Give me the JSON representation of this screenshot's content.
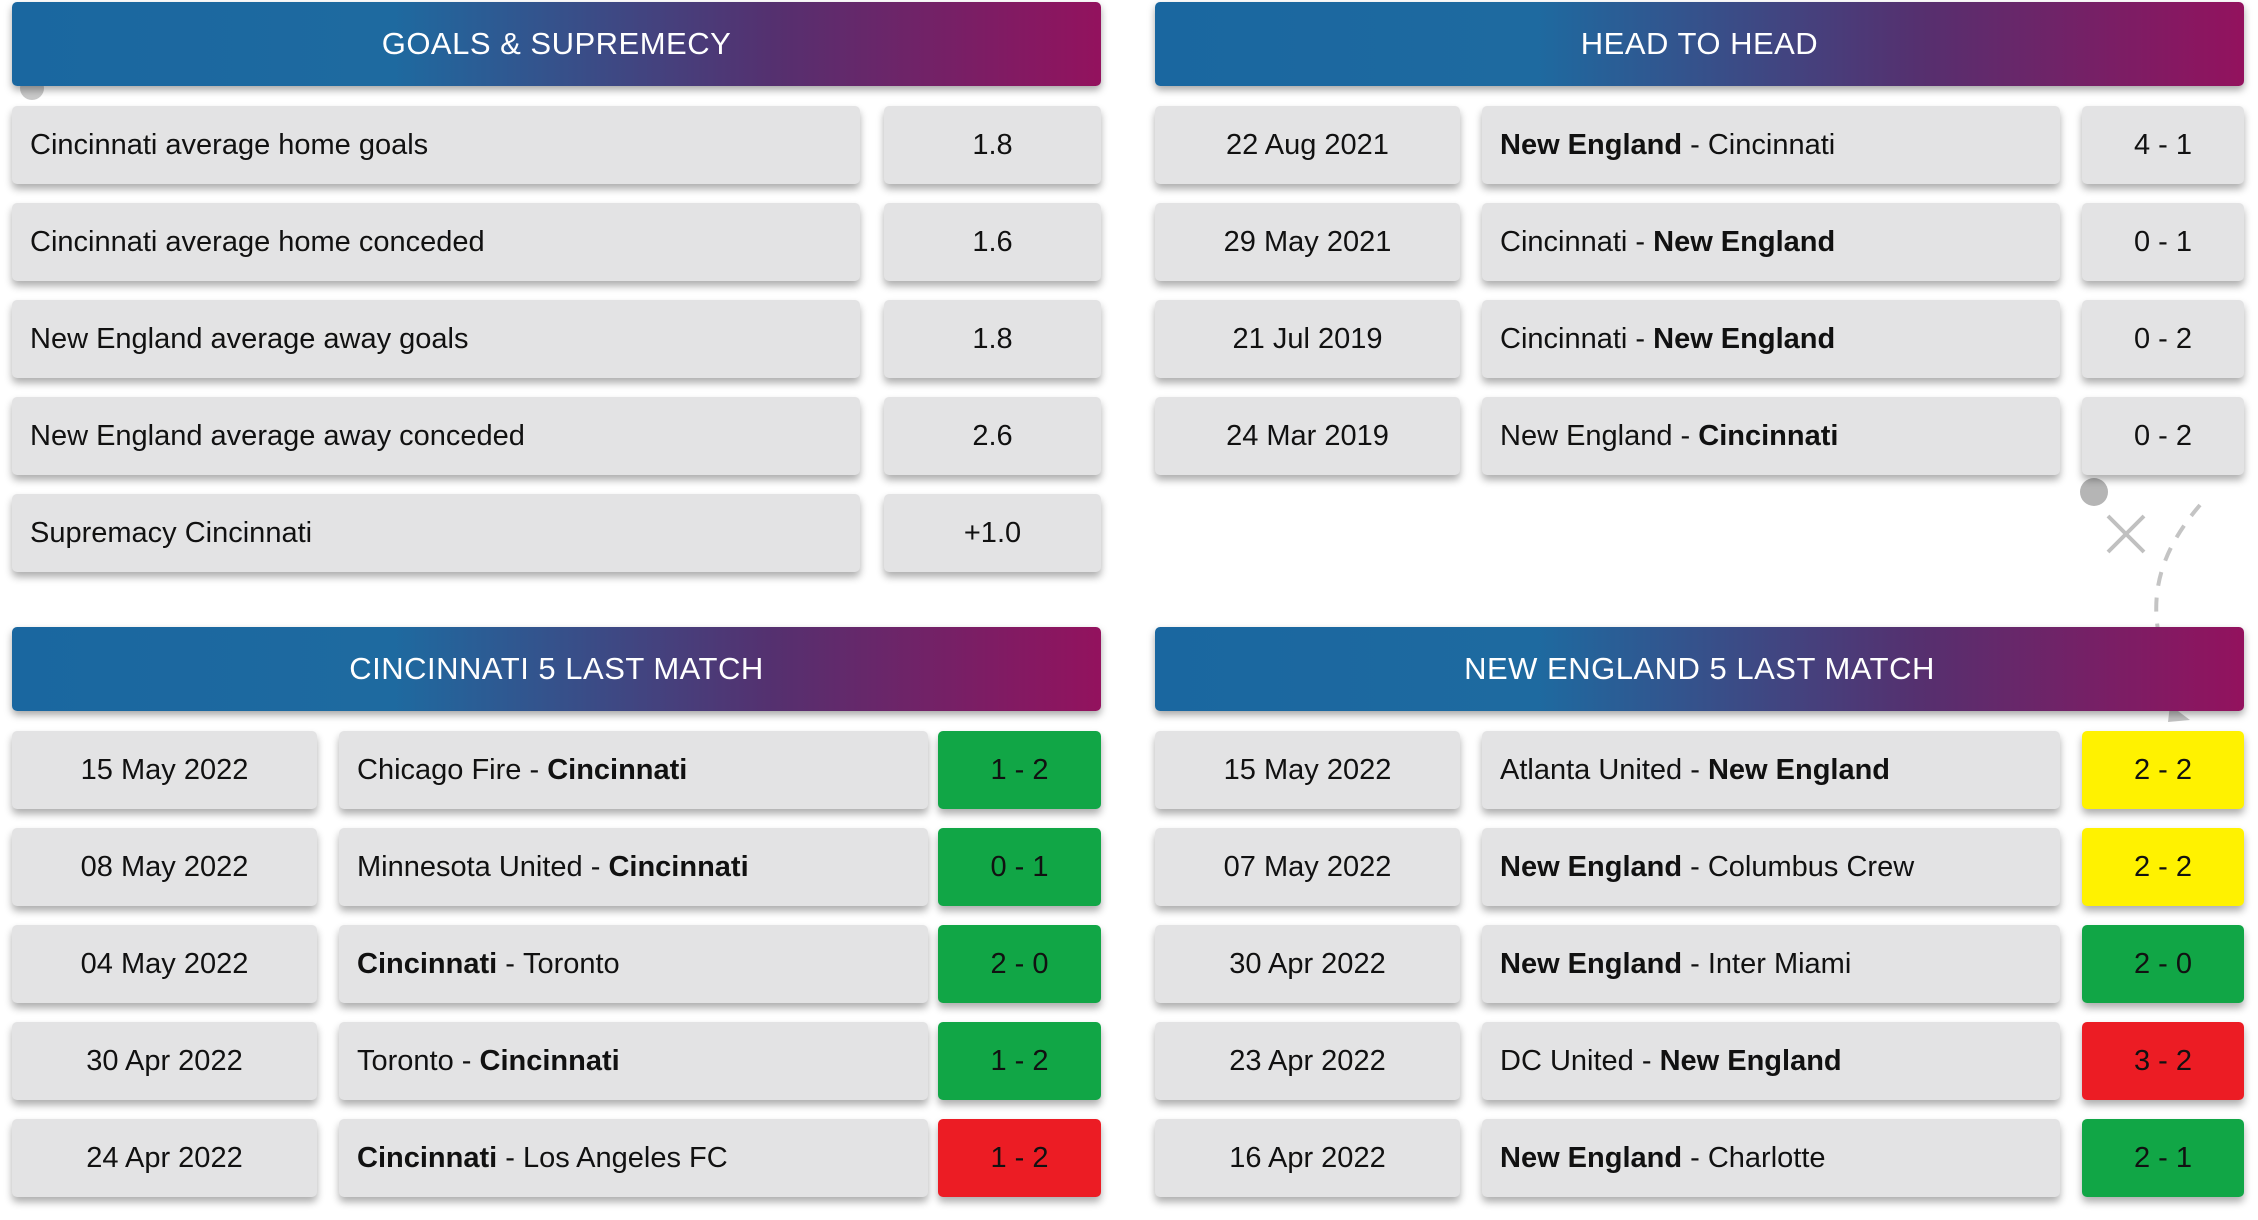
{
  "colors": {
    "header_start": "#1a67a0",
    "header_end": "#93125e",
    "cell_bg": "#e3e3e4",
    "win": "#11a646",
    "loss": "#ec1c24",
    "draw": "#fff200"
  },
  "goals": {
    "title": "GOALS & SUPREMECY",
    "rows": [
      {
        "label": "Cincinnati average home goals",
        "value": "1.8"
      },
      {
        "label": "Cincinnati average home conceded",
        "value": "1.6"
      },
      {
        "label": "New England average away goals",
        "value": "1.8"
      },
      {
        "label": "New England average away conceded",
        "value": "2.6"
      },
      {
        "label": "Supremacy Cincinnati",
        "value": "+1.0"
      }
    ]
  },
  "h2h": {
    "title": "HEAD TO HEAD",
    "rows": [
      {
        "date": "22 Aug 2021",
        "home": "New England",
        "away": "Cincinnati",
        "bold": "home",
        "score": "4 - 1"
      },
      {
        "date": "29 May 2021",
        "home": "Cincinnati",
        "away": "New England",
        "bold": "away",
        "score": "0 - 1"
      },
      {
        "date": "21 Jul 2019",
        "home": "Cincinnati",
        "away": "New England",
        "bold": "away",
        "score": "0 - 2"
      },
      {
        "date": "24 Mar 2019",
        "home": "New England",
        "away": "Cincinnati",
        "bold": "away",
        "score": "0 - 2"
      }
    ]
  },
  "cincinnati_last": {
    "title": "CINCINNATI 5 LAST MATCH",
    "rows": [
      {
        "date": "15 May 2022",
        "home": "Chicago Fire",
        "away": "Cincinnati",
        "bold": "away",
        "score": "1 - 2",
        "result": "win"
      },
      {
        "date": "08 May 2022",
        "home": "Minnesota United",
        "away": "Cincinnati",
        "bold": "away",
        "score": "0 - 1",
        "result": "win"
      },
      {
        "date": "04 May 2022",
        "home": "Cincinnati",
        "away": "Toronto",
        "bold": "home",
        "score": "2 - 0",
        "result": "win"
      },
      {
        "date": "30 Apr 2022",
        "home": "Toronto",
        "away": "Cincinnati",
        "bold": "away",
        "score": "1 - 2",
        "result": "win"
      },
      {
        "date": "24 Apr 2022",
        "home": "Cincinnati",
        "away": "Los Angeles FC",
        "bold": "home",
        "score": "1 - 2",
        "result": "loss"
      }
    ]
  },
  "newengland_last": {
    "title": "NEW ENGLAND 5 LAST MATCH",
    "rows": [
      {
        "date": "15 May 2022",
        "home": "Atlanta United",
        "away": "New England",
        "bold": "away",
        "score": "2 - 2",
        "result": "draw"
      },
      {
        "date": "07 May 2022",
        "home": "New England",
        "away": "Columbus Crew",
        "bold": "home",
        "score": "2 - 2",
        "result": "draw"
      },
      {
        "date": "30 Apr 2022",
        "home": "New England",
        "away": "Inter Miami",
        "bold": "home",
        "score": "2 - 0",
        "result": "win"
      },
      {
        "date": "23 Apr 2022",
        "home": "DC United",
        "away": "New England",
        "bold": "away",
        "score": "3 - 2",
        "result": "loss"
      },
      {
        "date": "16 Apr 2022",
        "home": "New England",
        "away": "Charlotte",
        "bold": "home",
        "score": "2 - 1",
        "result": "win"
      }
    ]
  }
}
